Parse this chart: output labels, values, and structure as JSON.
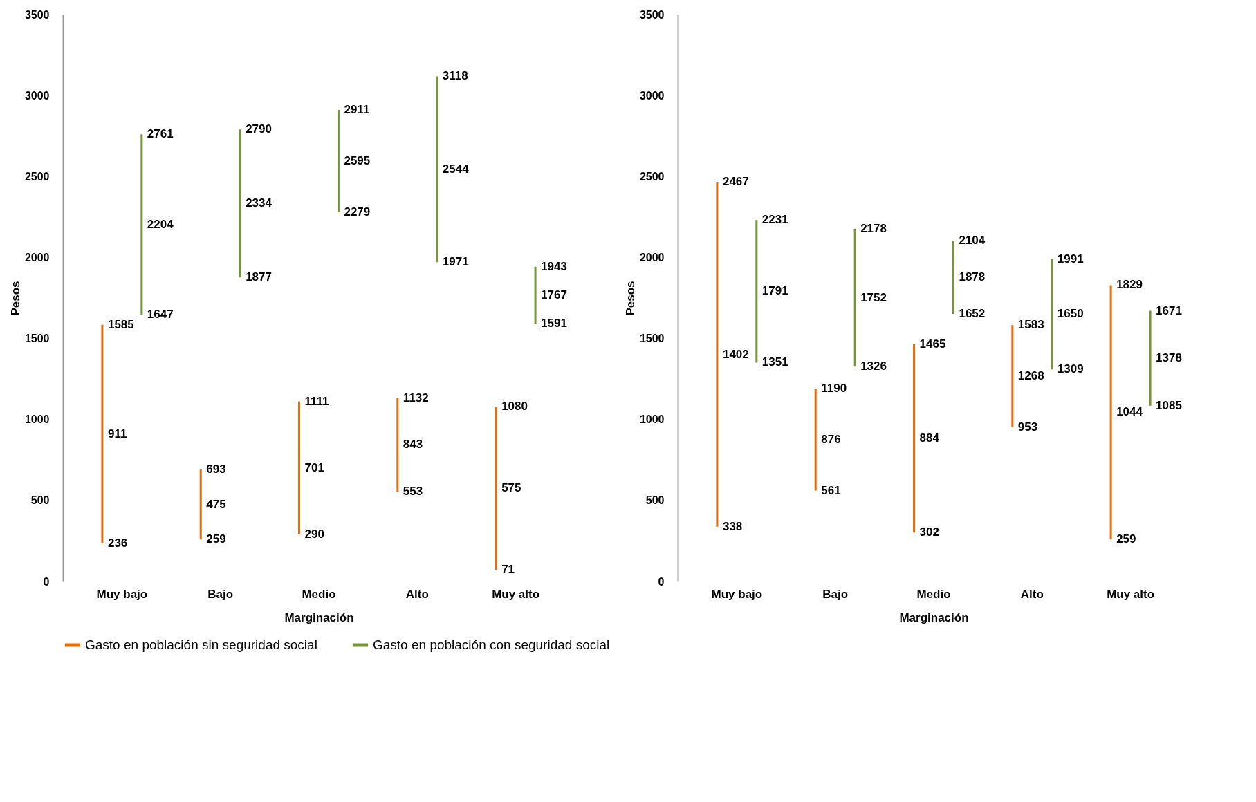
{
  "chart_data": [
    {
      "type": "line",
      "xlabel": "Marginación",
      "ylabel": "Pesos",
      "categories": [
        "Muy bajo",
        "Bajo",
        "Medio",
        "Alto",
        "Muy alto"
      ],
      "ylim": [
        0,
        3500
      ],
      "yticks": [
        0,
        500,
        1000,
        1500,
        2000,
        2500,
        3000,
        3500
      ],
      "legend": "bottom",
      "marker": "none",
      "data_labels": true,
      "series": [
        {
          "name": "Gasto en población sin seguridad social",
          "color": "#e46c0a",
          "x": [
            "Muy bajo",
            "Muy bajo",
            "Muy bajo",
            "Muy bajo",
            "Bajo",
            "Bajo",
            "Bajo",
            "Bajo",
            "Medio",
            "Medio",
            "Medio",
            "Medio",
            "Alto",
            "Alto",
            "Alto",
            "Alto",
            "Muy alto",
            "Muy alto",
            "Muy alto"
          ],
          "values": [
            236,
            911,
            1585,
            null,
            259,
            475,
            693,
            null,
            290,
            701,
            1111,
            null,
            553,
            843,
            1132,
            null,
            71,
            575,
            1080
          ]
        },
        {
          "name": "Gasto en población con seguridad social",
          "color": "#77933c",
          "x": [
            "Muy bajo",
            "Muy bajo",
            "Muy bajo",
            "Muy bajo",
            "Bajo",
            "Bajo",
            "Bajo",
            "Bajo",
            "Medio",
            "Medio",
            "Medio",
            "Medio",
            "Alto",
            "Alto",
            "Alto",
            "Alto",
            "Muy alto",
            "Muy alto",
            "Muy alto"
          ],
          "values": [
            1647,
            2204,
            2761,
            null,
            1877,
            2334,
            2790,
            null,
            2279,
            2595,
            2911,
            null,
            1971,
            2544,
            3118,
            null,
            1591,
            1767,
            1943
          ]
        }
      ]
    },
    {
      "type": "line",
      "xlabel": "Marginación",
      "ylabel": "Pesos",
      "categories": [
        "Muy bajo",
        "Bajo",
        "Medio",
        "Alto",
        "Muy alto"
      ],
      "ylim": [
        0,
        3500
      ],
      "yticks": [
        0,
        500,
        1000,
        1500,
        2000,
        2500,
        3000,
        3500
      ],
      "marker": "none",
      "data_labels": true,
      "series": [
        {
          "color": "#e46c0a",
          "x": [
            "Muy bajo",
            "Muy bajo",
            "Muy bajo",
            "Muy bajo",
            "Bajo",
            "Bajo",
            "Bajo",
            "Bajo",
            "Medio",
            "Medio",
            "Medio",
            "Medio",
            "Alto",
            "Alto",
            "Alto",
            "Alto",
            "Muy alto",
            "Muy alto",
            "Muy alto"
          ],
          "values": [
            338,
            1402,
            2467,
            null,
            561,
            876,
            1190,
            null,
            302,
            884,
            1465,
            null,
            953,
            1268,
            1583,
            null,
            259,
            1044,
            1829
          ]
        },
        {
          "color": "#77933c",
          "x": [
            "Muy bajo",
            "Muy bajo",
            "Muy bajo",
            "Muy bajo",
            "Bajo",
            "Bajo",
            "Bajo",
            "Bajo",
            "Medio",
            "Medio",
            "Medio",
            "Medio",
            "Alto",
            "Alto",
            "Alto",
            "Alto",
            "Muy alto",
            "Muy alto",
            "Muy alto"
          ],
          "values": [
            1351,
            1791,
            2231,
            null,
            1326,
            1752,
            2178,
            null,
            1652,
            1878,
            2104,
            null,
            1309,
            1650,
            1991,
            null,
            1085,
            1378,
            1671
          ]
        }
      ]
    }
  ]
}
